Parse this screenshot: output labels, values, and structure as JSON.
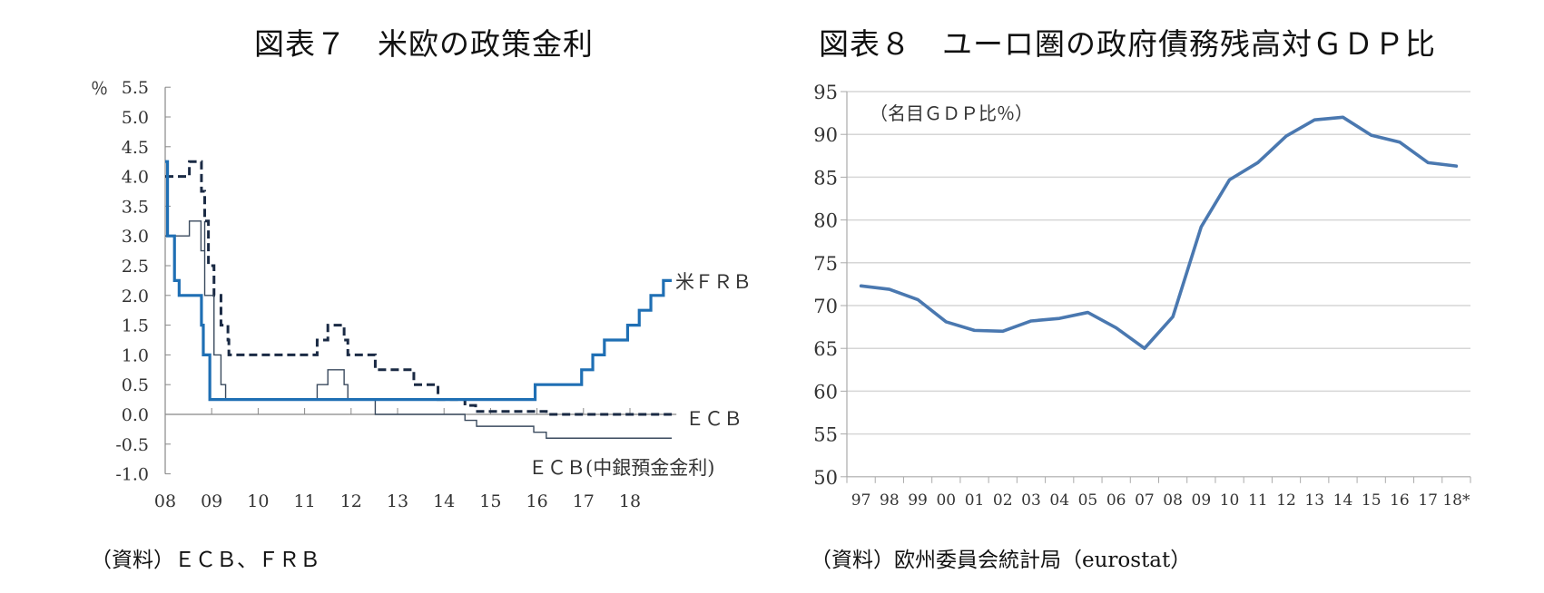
{
  "left": {
    "title": "図表７　米欧の政策金利",
    "source": "（資料）ＥＣＢ、ＦＲＢ",
    "y_unit": "％",
    "labels": {
      "frb": "米ＦＲＢ",
      "ecb": "ＥＣＢ",
      "ecb_deposit": "ＥＣＢ(中銀預金金利)"
    }
  },
  "right": {
    "title": "図表８　ユーロ圏の政府債務残高対ＧＤＰ比",
    "source": "（資料）欧州委員会統計局（eurostat）",
    "unit_note": "（名目ＧＤＰ比％）"
  },
  "chart_data": [
    {
      "type": "line",
      "title": "図表７　米欧の政策金利",
      "xlabel": "",
      "ylabel": "％",
      "ylim": [
        -1.0,
        5.5
      ],
      "yticks": [
        -1.0,
        -0.5,
        0.0,
        0.5,
        1.0,
        1.5,
        2.0,
        2.5,
        3.0,
        3.5,
        4.0,
        4.5,
        5.0,
        5.5
      ],
      "ytick_labels": [
        "-1.0",
        "-0.5",
        "0.0",
        "0.5",
        "1.0",
        "1.5",
        "2.0",
        "2.5",
        "3.0",
        "3.5",
        "4.0",
        "4.5",
        "5.0",
        "5.5"
      ],
      "xticks": [
        "08",
        "09",
        "10",
        "11",
        "12",
        "13",
        "14",
        "15",
        "16",
        "17",
        "18"
      ],
      "xlim": [
        2008,
        2019
      ],
      "grid": false,
      "step": true,
      "series": [
        {
          "name": "米ＦＲＢ",
          "color": "#1f6fb4",
          "style": "solid-thick",
          "points": [
            [
              2008.0,
              4.25
            ],
            [
              2008.05,
              3.0
            ],
            [
              2008.2,
              2.25
            ],
            [
              2008.3,
              2.0
            ],
            [
              2008.78,
              1.5
            ],
            [
              2008.82,
              1.0
            ],
            [
              2008.96,
              0.25
            ],
            [
              2015.96,
              0.5
            ],
            [
              2016.96,
              0.75
            ],
            [
              2017.2,
              1.0
            ],
            [
              2017.45,
              1.25
            ],
            [
              2017.95,
              1.5
            ],
            [
              2018.2,
              1.75
            ],
            [
              2018.45,
              2.0
            ],
            [
              2018.72,
              2.25
            ],
            [
              2018.9,
              2.25
            ]
          ]
        },
        {
          "name": "ＥＣＢ",
          "color": "#1a2a44",
          "style": "dashed",
          "points": [
            [
              2008.0,
              4.0
            ],
            [
              2008.52,
              4.25
            ],
            [
              2008.78,
              3.75
            ],
            [
              2008.85,
              3.25
            ],
            [
              2008.93,
              2.5
            ],
            [
              2009.05,
              2.0
            ],
            [
              2009.2,
              1.5
            ],
            [
              2009.35,
              1.25
            ],
            [
              2009.37,
              1.0
            ],
            [
              2011.27,
              1.25
            ],
            [
              2011.5,
              1.5
            ],
            [
              2011.85,
              1.25
            ],
            [
              2011.93,
              1.0
            ],
            [
              2012.52,
              0.75
            ],
            [
              2013.35,
              0.5
            ],
            [
              2013.87,
              0.25
            ],
            [
              2014.45,
              0.15
            ],
            [
              2014.68,
              0.05
            ],
            [
              2016.2,
              0.0
            ],
            [
              2018.9,
              0.0
            ]
          ]
        },
        {
          "name": "ＥＣＢ(中銀預金金利)",
          "color": "#3a4a5e",
          "style": "solid-thin",
          "points": [
            [
              2008.0,
              3.0
            ],
            [
              2008.52,
              3.25
            ],
            [
              2008.77,
              2.75
            ],
            [
              2008.85,
              3.25
            ],
            [
              2008.85,
              2.0
            ],
            [
              2009.05,
              1.0
            ],
            [
              2009.2,
              0.5
            ],
            [
              2009.3,
              0.25
            ],
            [
              2011.27,
              0.5
            ],
            [
              2011.5,
              0.75
            ],
            [
              2011.85,
              0.5
            ],
            [
              2011.93,
              0.25
            ],
            [
              2012.52,
              0.0
            ],
            [
              2014.45,
              -0.1
            ],
            [
              2014.7,
              -0.2
            ],
            [
              2015.93,
              -0.3
            ],
            [
              2016.2,
              -0.4
            ],
            [
              2018.9,
              -0.4
            ]
          ]
        }
      ],
      "annotations": [
        "米ＦＲＢ",
        "ＥＣＢ",
        "ＥＣＢ(中銀預金金利)"
      ]
    },
    {
      "type": "line",
      "title": "図表８　ユーロ圏の政府債務残高対ＧＤＰ比",
      "xlabel": "",
      "ylabel": "（名目ＧＤＰ比％）",
      "ylim": [
        50,
        95
      ],
      "yticks": [
        50,
        55,
        60,
        65,
        70,
        75,
        80,
        85,
        90,
        95
      ],
      "grid": true,
      "categories": [
        "97",
        "98",
        "99",
        "00",
        "01",
        "02",
        "03",
        "04",
        "05",
        "06",
        "07",
        "08",
        "09",
        "10",
        "11",
        "12",
        "13",
        "14",
        "15",
        "16",
        "17",
        "18*"
      ],
      "series": [
        {
          "name": "政府債務残高対ＧＤＰ比",
          "color": "#4a78b0",
          "values": [
            72.3,
            71.9,
            70.7,
            68.1,
            67.1,
            67.0,
            68.2,
            68.5,
            69.2,
            67.4,
            65.0,
            68.7,
            79.2,
            84.7,
            86.7,
            89.8,
            91.7,
            92.0,
            89.9,
            89.1,
            86.7,
            86.3
          ]
        }
      ]
    }
  ]
}
